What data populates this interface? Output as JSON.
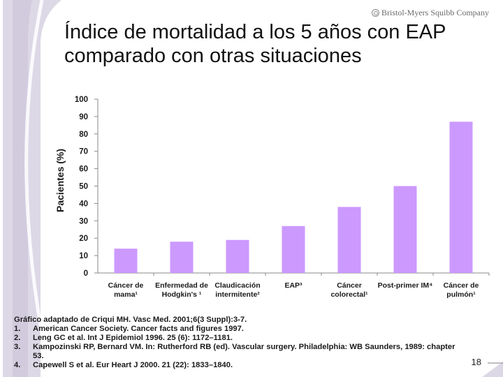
{
  "brand": {
    "name": "Bristol-Myers Squibb Company",
    "logo_icon": "bms-logo-icon"
  },
  "title_lines": [
    "Índice de mortalidad a los 5 años con EAP",
    "comparado con otras situaciones"
  ],
  "chart_data": {
    "type": "bar",
    "title": "Índice de mortalidad a los 5 años con EAP comparado con otras situaciones",
    "xlabel": "",
    "ylabel": "Pacientes (%)",
    "ylim": [
      0,
      100
    ],
    "yticks": [
      0,
      10,
      20,
      30,
      40,
      50,
      60,
      70,
      80,
      90,
      100
    ],
    "categories": [
      [
        "Cáncer de",
        "mama¹"
      ],
      [
        "Enfermedad de",
        "Hodgkin's ¹"
      ],
      [
        "Claudicación",
        "intermitente²"
      ],
      [
        "EAP³"
      ],
      [
        "Cáncer",
        "colorectal¹"
      ],
      [
        "Post-primer IM⁴"
      ],
      [
        "Cáncer de",
        "pulmón¹"
      ]
    ],
    "values": [
      14,
      18,
      19,
      27,
      38,
      50,
      87
    ],
    "bar_color": "#cc99ff",
    "grid": false
  },
  "footnotes": {
    "intro": "Gráfico adaptado de Criqui MH. Vasc Med. 2001;6(3 Suppl):3-7.",
    "items": [
      {
        "num": "1.",
        "text": "American Cancer Society. Cancer facts and figures 1997."
      },
      {
        "num": "2.",
        "text": "Leng GC et al. Int J Epidemiol 1996. 25 (6): 1172–1181."
      },
      {
        "num": "3.",
        "text": "Kampozinski RP, Bernard VM. In: Rutherford RB (ed). Vascular surgery. Philadelphia: WB Saunders, 1989: chapter 53."
      },
      {
        "num": "4.",
        "text": "Capewell S et al. Eur Heart J 2000. 21 (22): 1833–1840."
      }
    ]
  },
  "page_number": "18",
  "colors": {
    "accent": "#cc99ff",
    "decoration": "#d8d2e3"
  }
}
